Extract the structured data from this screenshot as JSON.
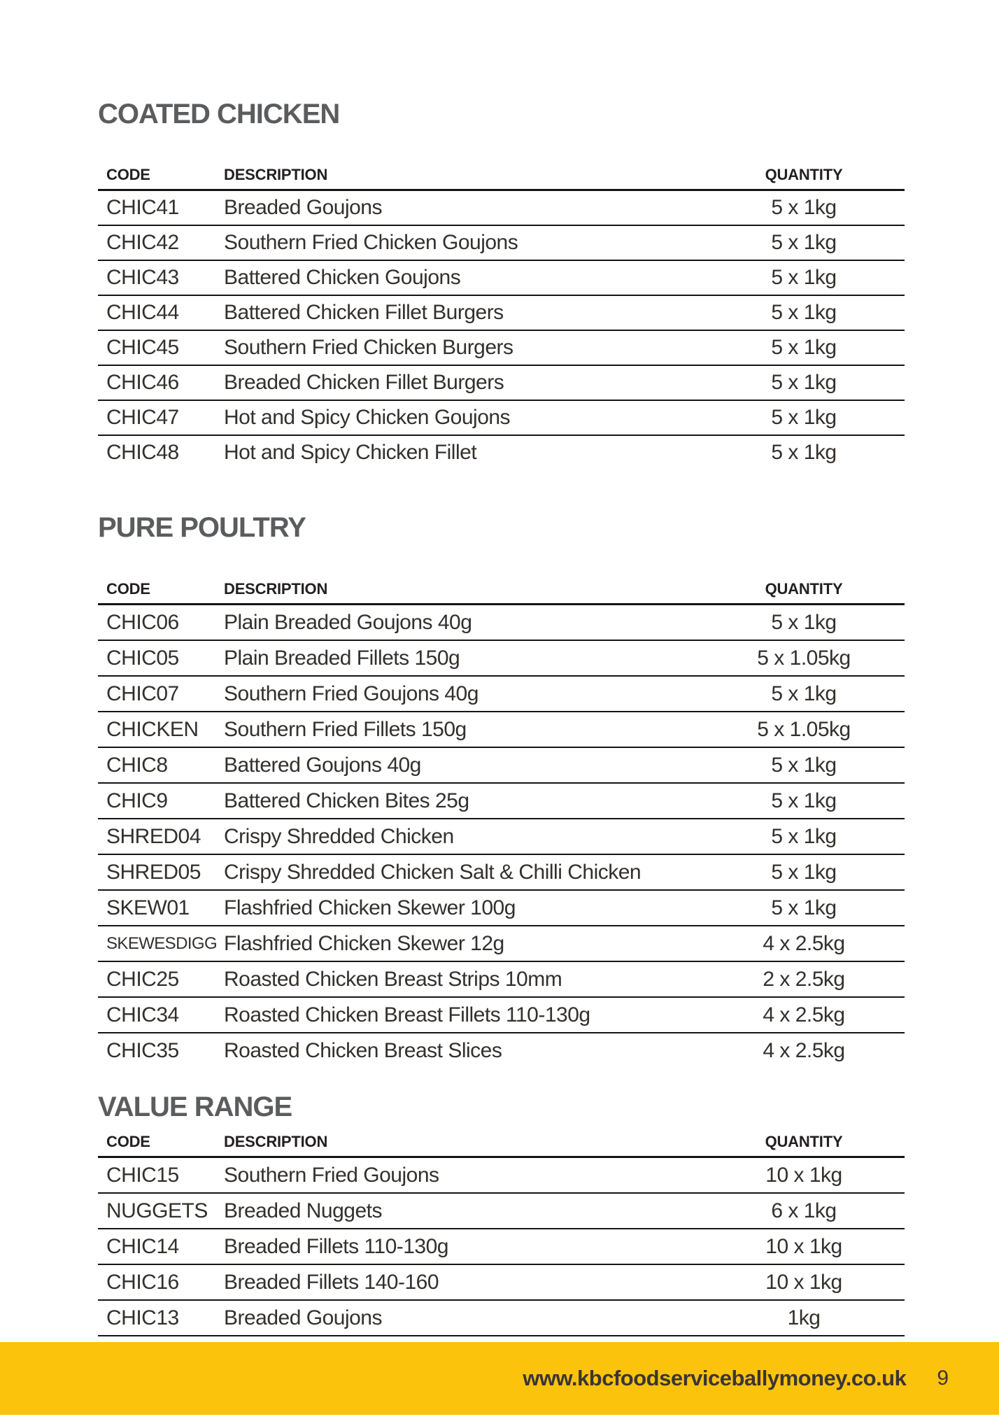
{
  "colors": {
    "accent_yellow": "#FCC30D",
    "heading_gray": "#5B5C5E",
    "table_line_black": "#161513",
    "body_text": "#33302D"
  },
  "document": {
    "sections": [
      {
        "title": "COATED CHICKEN",
        "columns": {
          "code": "CODE",
          "description": "DESCRIPTION",
          "quantity": "QUANTITY"
        },
        "rows": [
          {
            "code": "CHIC41",
            "description": "Breaded Goujons",
            "quantity": "5 x 1kg"
          },
          {
            "code": "CHIC42",
            "description": "Southern Fried Chicken Goujons",
            "quantity": "5 x 1kg"
          },
          {
            "code": "CHIC43",
            "description": "Battered Chicken Goujons",
            "quantity": "5 x 1kg"
          },
          {
            "code": "CHIC44",
            "description": "Battered Chicken Fillet Burgers",
            "quantity": "5 x 1kg"
          },
          {
            "code": "CHIC45",
            "description": "Southern Fried Chicken Burgers",
            "quantity": "5 x 1kg"
          },
          {
            "code": "CHIC46",
            "description": "Breaded Chicken Fillet Burgers",
            "quantity": "5 x 1kg"
          },
          {
            "code": "CHIC47",
            "description": "Hot and Spicy Chicken Goujons",
            "quantity": "5 x 1kg"
          },
          {
            "code": "CHIC48",
            "description": "Hot and Spicy Chicken Fillet",
            "quantity": "5 x 1kg"
          }
        ]
      },
      {
        "title": "PURE POULTRY",
        "columns": {
          "code": "CODE",
          "description": "DESCRIPTION",
          "quantity": "QUANTITY"
        },
        "rows": [
          {
            "code": "CHIC06",
            "description": "Plain Breaded Goujons 40g",
            "quantity": "5 x 1kg"
          },
          {
            "code": "CHIC05",
            "description": "Plain Breaded Fillets 150g",
            "quantity": "5 x 1.05kg"
          },
          {
            "code": "CHIC07",
            "description": "Southern Fried Goujons 40g",
            "quantity": "5 x 1kg"
          },
          {
            "code": "CHICKEN",
            "description": "Southern Fried Fillets 150g",
            "quantity": "5 x 1.05kg"
          },
          {
            "code": "CHIC8",
            "description": "Battered Goujons 40g",
            "quantity": "5 x 1kg"
          },
          {
            "code": "CHIC9",
            "description": "Battered Chicken Bites 25g",
            "quantity": "5 x 1kg"
          },
          {
            "code": "SHRED04",
            "description": "Crispy Shredded Chicken",
            "quantity": "5 x 1kg"
          },
          {
            "code": "SHRED05",
            "description": "Crispy Shredded Chicken Salt & Chilli Chicken",
            "quantity": "5 x 1kg"
          },
          {
            "code": "SKEW01",
            "description": "Flashfried Chicken Skewer 100g",
            "quantity": "5 x 1kg"
          },
          {
            "code": "SKEWESDIGG",
            "description": "Flashfried Chicken Skewer 12g",
            "quantity": "4 x 2.5kg"
          },
          {
            "code": "CHIC25",
            "description": "Roasted Chicken Breast Strips 10mm",
            "quantity": "2 x 2.5kg"
          },
          {
            "code": "CHIC34",
            "description": "Roasted Chicken Breast Fillets 110-130g",
            "quantity": "4 x 2.5kg"
          },
          {
            "code": "CHIC35",
            "description": "Roasted Chicken Breast Slices",
            "quantity": "4 x 2.5kg"
          }
        ]
      },
      {
        "title": "VALUE RANGE",
        "columns": {
          "code": "CODE",
          "description": "DESCRIPTION",
          "quantity": "QUANTITY"
        },
        "rows": [
          {
            "code": "CHIC15",
            "description": "Southern Fried Goujons",
            "quantity": "10 x 1kg"
          },
          {
            "code": "NUGGETS",
            "description": "Breaded Nuggets",
            "quantity": "6 x 1kg"
          },
          {
            "code": "CHIC14",
            "description": "Breaded Fillets 110-130g",
            "quantity": "10 x 1kg"
          },
          {
            "code": "CHIC16",
            "description": "Breaded Fillets 140-160",
            "quantity": "10 x 1kg"
          },
          {
            "code": "CHIC13",
            "description": "Breaded Goujons",
            "quantity": "1kg"
          }
        ]
      }
    ],
    "footer": {
      "url": "www.kbcfoodserviceballymoney.co.uk",
      "page_number": "9"
    }
  }
}
